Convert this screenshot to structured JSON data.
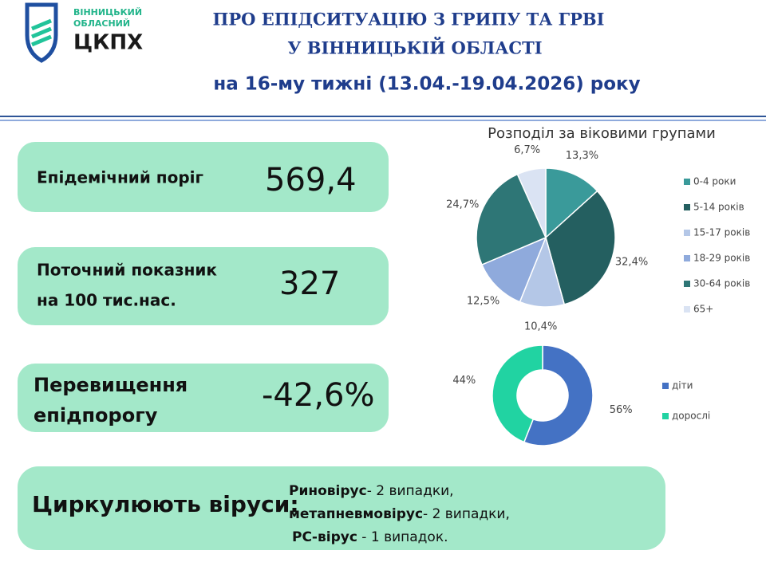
{
  "header": {
    "logo_line1": "ВІННИЦЬКИЙ",
    "logo_line2": "ОБЛАСНИЙ",
    "logo_name": "ЦКПХ",
    "title_line1": "ПРО ЕПІДСИТУАЦІЮ З ГРИПУ ТА ГРВІ",
    "title_line2": "У ВІННИЦЬКІЙ ОБЛАСТІ",
    "subtitle": "на 16-му тижні (13.04.-19.04.2026) року"
  },
  "cards": [
    {
      "label": [
        "Епідемічний поріг"
      ],
      "value": "569,4"
    },
    {
      "label": [
        "Поточний показник",
        "на 100 тис.нас."
      ],
      "value": "327"
    },
    {
      "label": [
        "Перевищення",
        "епідпорогу"
      ],
      "value": "-42,6%"
    }
  ],
  "viruses": {
    "label": "Циркулюють віруси:",
    "lines": [
      {
        "bold": "Риновірус",
        "text": "- 2 випадки,"
      },
      {
        "bold": "метапневмовірус",
        "text": "- 2 випадки,"
      },
      {
        "bold": "РС-вірус",
        "text": " - 1 випадок."
      }
    ]
  },
  "chart_data": [
    {
      "type": "pie",
      "title": "Розподіл за віковими групами",
      "categories": [
        "0-4 роки",
        "5-14 років",
        "15-17 років",
        "18-29 років",
        "30-64 років",
        "65+"
      ],
      "values": [
        13.3,
        32.4,
        10.4,
        12.5,
        24.7,
        6.7
      ],
      "value_labels": [
        "13,3%",
        "32,4%",
        "10,4%",
        "12,5%",
        "24,7%",
        "6,7%"
      ],
      "colors": [
        "#3a9a9a",
        "#245f60",
        "#b4c7e7",
        "#8faadc",
        "#2e7676",
        "#dae3f3"
      ]
    },
    {
      "type": "donut",
      "categories": [
        "діти",
        "дорослі"
      ],
      "values": [
        56,
        44
      ],
      "value_labels": [
        "56%",
        "44%"
      ],
      "colors": [
        "#4472c4",
        "#21d3a2"
      ]
    }
  ]
}
